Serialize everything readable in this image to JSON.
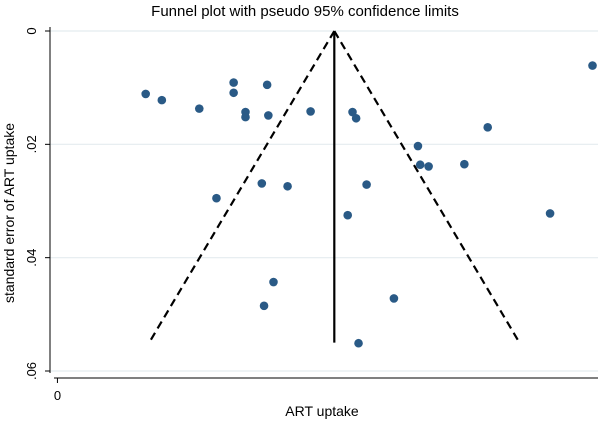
{
  "chart_data": {
    "type": "scatter",
    "title": "Funnel plot with pseudo 95% confidence limits",
    "xlabel": "ART uptake",
    "ylabel": "standard error of ART uptake",
    "y_axis_reversed": true,
    "ylim": [
      0,
      0.06
    ],
    "xlim": [
      -0.002,
      0.317
    ],
    "x_ticks": [
      {
        "value": 0,
        "label": "0"
      }
    ],
    "y_ticks": [
      {
        "value": 0,
        "label": "0"
      },
      {
        "value": 0.02,
        "label": ".02"
      },
      {
        "value": 0.04,
        "label": ".04"
      },
      {
        "value": 0.06,
        "label": ".06"
      }
    ],
    "grid": true,
    "pooled_estimate": 0.1635,
    "confidence_limits": {
      "level": "95%",
      "se_min": 0,
      "se_max": 0.055
    },
    "points": [
      {
        "x": 0.0537,
        "y": 0.0111
      },
      {
        "x": 0.0631,
        "y": 0.0122
      },
      {
        "x": 0.0849,
        "y": 0.0137
      },
      {
        "x": 0.0949,
        "y": 0.0295
      },
      {
        "x": 0.1049,
        "y": 0.0091
      },
      {
        "x": 0.1049,
        "y": 0.0109
      },
      {
        "x": 0.1118,
        "y": 0.0143
      },
      {
        "x": 0.1118,
        "y": 0.0152
      },
      {
        "x": 0.1213,
        "y": 0.0269
      },
      {
        "x": 0.1244,
        "y": 0.0095
      },
      {
        "x": 0.1251,
        "y": 0.0149
      },
      {
        "x": 0.1226,
        "y": 0.0485
      },
      {
        "x": 0.1281,
        "y": 0.0443
      },
      {
        "x": 0.1363,
        "y": 0.0274
      },
      {
        "x": 0.1497,
        "y": 0.0142
      },
      {
        "x": 0.1741,
        "y": 0.0143
      },
      {
        "x": 0.1762,
        "y": 0.0154
      },
      {
        "x": 0.1713,
        "y": 0.0325
      },
      {
        "x": 0.1823,
        "y": 0.0271
      },
      {
        "x": 0.1776,
        "y": 0.0551
      },
      {
        "x": 0.1982,
        "y": 0.0472
      },
      {
        "x": 0.2122,
        "y": 0.0203
      },
      {
        "x": 0.2135,
        "y": 0.0236
      },
      {
        "x": 0.2184,
        "y": 0.0239
      },
      {
        "x": 0.2392,
        "y": 0.0235
      },
      {
        "x": 0.2528,
        "y": 0.017
      },
      {
        "x": 0.2891,
        "y": 0.0322
      },
      {
        "x": 0.3138,
        "y": 0.0061
      }
    ],
    "colors": {
      "marker": "#2a5a86",
      "line": "#000000",
      "grid": "#e4ecef",
      "axis": "#000000"
    }
  }
}
